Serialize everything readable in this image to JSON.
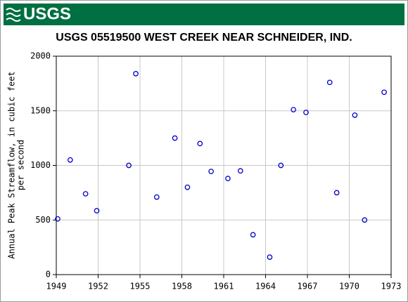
{
  "header": {
    "logo": "USGS"
  },
  "chart_data": {
    "type": "scatter",
    "title": "USGS 05519500 WEST CREEK NEAR SCHNEIDER, IND.",
    "y_label": [
      "Annual Peak Streamflow, in cubic feet",
      "per second"
    ],
    "x": [
      1949.1,
      1950.0,
      1951.1,
      1951.9,
      1954.2,
      1954.7,
      1956.2,
      1957.5,
      1958.4,
      1959.3,
      1960.1,
      1961.3,
      1962.2,
      1963.1,
      1964.3,
      1965.1,
      1966.0,
      1966.9,
      1968.6,
      1969.1,
      1970.4,
      1971.1,
      1972.5
    ],
    "values": [
      510,
      1050,
      740,
      585,
      1000,
      1840,
      710,
      1250,
      800,
      1200,
      945,
      880,
      950,
      365,
      160,
      1000,
      1510,
      1485,
      1760,
      750,
      1460,
      500,
      1670
    ],
    "color": "#0000cc",
    "xlim": [
      1949,
      1973
    ],
    "xticks": [
      1949,
      1952,
      1955,
      1958,
      1961,
      1964,
      1967,
      1970,
      1973
    ],
    "ylim": [
      0,
      2000
    ],
    "yticks": [
      0,
      500,
      1000,
      1500,
      2000
    ],
    "grid": true
  }
}
